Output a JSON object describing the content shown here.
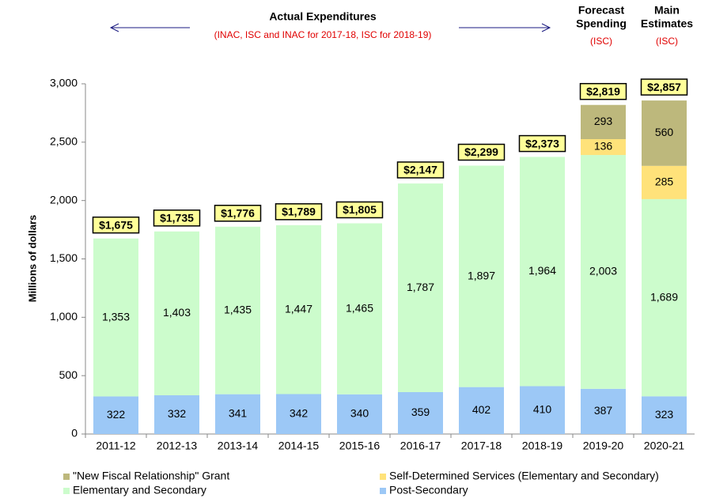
{
  "chart_data": {
    "type": "stacked-bar",
    "annotations": {
      "actual": "Actual Expenditures",
      "actual_note": "(INAC, ISC and INAC for 2017-18, ISC for 2018-19)",
      "forecast": [
        "Forecast",
        "Spending"
      ],
      "forecast_note": "(ISC)",
      "main": [
        "Main",
        "Estimates"
      ],
      "main_note": "(ISC)"
    },
    "y_label": "Millions  of dollars",
    "categories": [
      "2011-12",
      "2012-13",
      "2013-14",
      "2014-15",
      "2015-16",
      "2016-17",
      "2017-18",
      "2018-19",
      "2019-20",
      "2020-21"
    ],
    "series": [
      {
        "name": "Post-Secondary",
        "color": "#9cc8f6",
        "values": [
          322,
          332,
          341,
          342,
          340,
          359,
          402,
          410,
          387,
          323
        ]
      },
      {
        "name": "Elementary and Secondary",
        "color": "#ccfccc",
        "values": [
          1353,
          1403,
          1435,
          1447,
          1465,
          1787,
          1897,
          1964,
          2003,
          1689
        ]
      },
      {
        "name": "Self-Determined Services (Elementary and Secondary)",
        "color": "#ffe27a",
        "values": [
          null,
          null,
          null,
          null,
          null,
          null,
          null,
          null,
          136,
          285
        ]
      },
      {
        "name": "\"New Fiscal Relationship\" Grant",
        "color": "#bdb87c",
        "values": [
          null,
          null,
          null,
          null,
          null,
          null,
          null,
          null,
          293,
          560
        ]
      }
    ],
    "totals": [
      1675,
      1735,
      1776,
      1789,
      1805,
      2147,
      2299,
      2373,
      2819,
      2857
    ],
    "total_labels": [
      "$1,675",
      "$1,735",
      "$1,776",
      "$1,789",
      "$1,805",
      "$2,147",
      "$2,299",
      "$2,373",
      "$2,819",
      "$2,857"
    ],
    "ylim": [
      0,
      3000
    ],
    "yticks": [
      0,
      500,
      {
        "value": 1000,
        "label": "1,000"
      },
      {
        "value": 1500,
        "label": "1,500"
      },
      {
        "value": 2000,
        "label": "2,000"
      },
      {
        "value": 2500,
        "label": "2,500"
      },
      {
        "value": 3000,
        "label": "3,000"
      }
    ],
    "segment_labels": [
      [
        "322",
        "332",
        "341",
        "342",
        "340",
        "359",
        "402",
        "410",
        "387",
        "323"
      ],
      [
        "1,353",
        "1,403",
        "1,435",
        "1,447",
        "1,465",
        "1,787",
        "1,897",
        "1,964",
        "2,003",
        "1,689"
      ],
      [
        null,
        null,
        null,
        null,
        null,
        null,
        null,
        null,
        "136",
        "285"
      ],
      [
        null,
        null,
        null,
        null,
        null,
        null,
        null,
        null,
        "293",
        "560"
      ]
    ],
    "grid": false
  }
}
